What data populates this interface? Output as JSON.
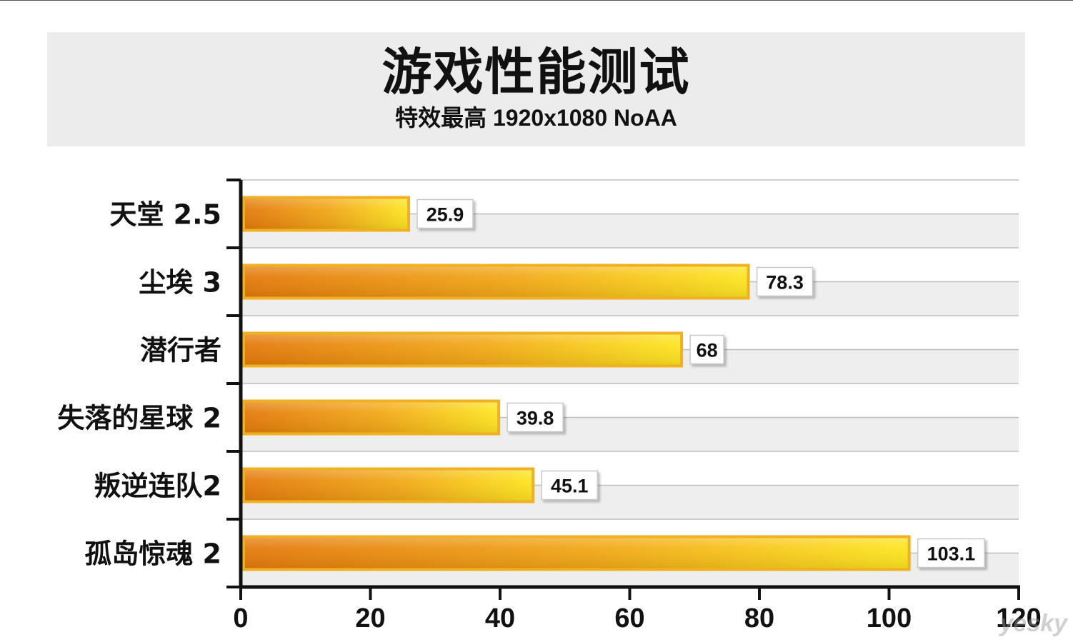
{
  "chart_data": {
    "type": "bar",
    "orientation": "horizontal",
    "title": "游戏性能测试",
    "subtitle": "特效最高  1920x1080 NoAA",
    "categories": [
      "天堂 2.5",
      "尘埃 3",
      "潜行者",
      "失落的星球 2",
      "叛逆连队2",
      "孤岛惊魂 2"
    ],
    "values": [
      25.9,
      78.3,
      68,
      39.8,
      45.1,
      103.1
    ],
    "xlim": [
      0,
      120
    ],
    "xticks": [
      0,
      20,
      40,
      60,
      80,
      100,
      120
    ],
    "grid": true,
    "legend": "none",
    "colors": {
      "bar_start": "#e47a0c",
      "bar_mid": "#f2aa18",
      "bar_end": "#fde521",
      "bar_border": "#f0b020",
      "band": "#eeeeee",
      "axis": "#111111"
    }
  },
  "watermark": "yesky"
}
